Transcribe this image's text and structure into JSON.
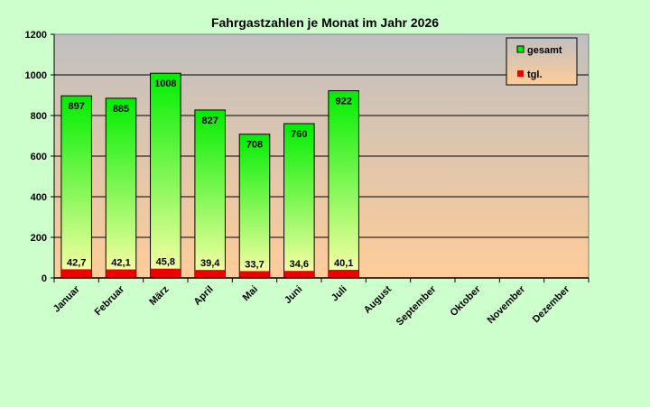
{
  "chart_data": {
    "type": "bar",
    "title": "Fahrgastzahlen je Monat im Jahr 2026",
    "categories": [
      "Januar",
      "Februar",
      "März",
      "April",
      "Mai",
      "Juni",
      "Juli",
      "August",
      "September",
      "Oktober",
      "November",
      "Dezember"
    ],
    "series": [
      {
        "name": "gesamt",
        "color": "#00ee00",
        "values": [
          897,
          885,
          1008,
          827,
          708,
          760,
          922,
          null,
          null,
          null,
          null,
          null
        ],
        "labels": [
          "897",
          "885",
          "1008",
          "827",
          "708",
          "760",
          "922",
          "",
          "",
          "",
          "",
          ""
        ]
      },
      {
        "name": "tgl.",
        "color": "#ee0000",
        "values": [
          42.7,
          42.1,
          45.8,
          39.4,
          33.7,
          34.6,
          40.1,
          null,
          null,
          null,
          null,
          null
        ],
        "labels": [
          "42,7",
          "42,1",
          "45,8",
          "39,4",
          "33,7",
          "34,6",
          "40,1",
          "",
          "",
          "",
          "",
          ""
        ]
      }
    ],
    "yticks": [
      "0",
      "200",
      "400",
      "600",
      "800",
      "1000",
      "1200"
    ],
    "ylim": [
      0,
      1200
    ],
    "grid": true,
    "legend_position": "top-right"
  }
}
